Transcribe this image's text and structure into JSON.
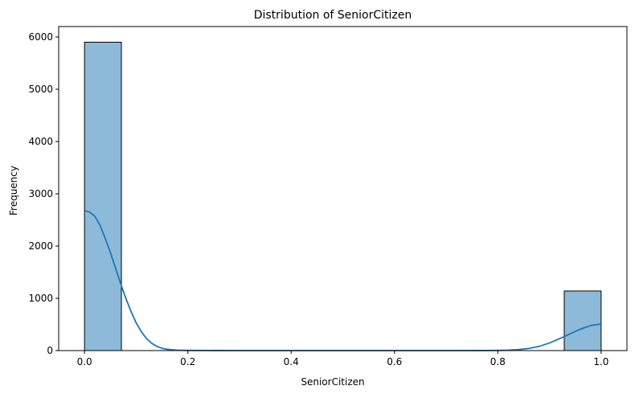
{
  "chart_data": {
    "type": "bar",
    "title": "Distribution of SeniorCitizen",
    "xlabel": "SeniorCitizen",
    "ylabel": "Frequency",
    "xlim": [
      -0.05,
      1.05
    ],
    "ylim": [
      0,
      6200
    ],
    "x_ticks": [
      0.0,
      0.2,
      0.4,
      0.6,
      0.8,
      1.0
    ],
    "x_tick_labels": [
      "0.0",
      "0.2",
      "0.4",
      "0.6",
      "0.8",
      "1.0"
    ],
    "y_ticks": [
      0,
      1000,
      2000,
      3000,
      4000,
      5000,
      6000
    ],
    "y_tick_labels": [
      "0",
      "1000",
      "2000",
      "3000",
      "4000",
      "5000",
      "6000"
    ],
    "bins": [
      {
        "x0": 0.0,
        "x1": 0.0714,
        "count": 5900
      },
      {
        "x0": 0.9286,
        "x1": 1.0,
        "count": 1140
      }
    ],
    "kde": [
      [
        0.0,
        2680
      ],
      [
        0.01,
        2650
      ],
      [
        0.02,
        2570
      ],
      [
        0.03,
        2400
      ],
      [
        0.04,
        2150
      ],
      [
        0.05,
        1880
      ],
      [
        0.06,
        1580
      ],
      [
        0.07,
        1280
      ],
      [
        0.08,
        1000
      ],
      [
        0.09,
        750
      ],
      [
        0.1,
        530
      ],
      [
        0.11,
        360
      ],
      [
        0.12,
        230
      ],
      [
        0.13,
        140
      ],
      [
        0.14,
        80
      ],
      [
        0.15,
        45
      ],
      [
        0.16,
        24
      ],
      [
        0.18,
        8
      ],
      [
        0.2,
        3
      ],
      [
        0.25,
        1
      ],
      [
        0.3,
        0
      ],
      [
        0.5,
        0
      ],
      [
        0.7,
        0
      ],
      [
        0.78,
        1
      ],
      [
        0.8,
        3
      ],
      [
        0.82,
        8
      ],
      [
        0.84,
        18
      ],
      [
        0.86,
        40
      ],
      [
        0.88,
        80
      ],
      [
        0.9,
        145
      ],
      [
        0.92,
        230
      ],
      [
        0.94,
        320
      ],
      [
        0.96,
        410
      ],
      [
        0.98,
        480
      ],
      [
        1.0,
        510
      ]
    ],
    "bar_color": "#8ebad9",
    "bar_edge_color": "#000000",
    "kde_color": "#1f77b4",
    "grid": false
  }
}
